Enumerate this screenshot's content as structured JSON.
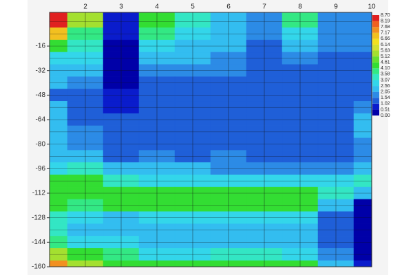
{
  "chart_data": {
    "type": "contour",
    "x": [
      1,
      2,
      3,
      4,
      5,
      6,
      7,
      8,
      9,
      10
    ],
    "y": [
      0,
      -8,
      -16,
      -24,
      -32,
      -40,
      -48,
      -56,
      -64,
      -72,
      -80,
      -88,
      -96,
      -104,
      -112,
      -120,
      -128,
      -136,
      -144,
      -152,
      -160
    ],
    "z": [
      [
        8.2,
        5.5,
        0.8,
        4.5,
        3.5,
        2.3,
        2.0,
        3.8,
        2.0,
        2.0
      ],
      [
        7.0,
        4.0,
        0.6,
        3.8,
        3.0,
        2.3,
        1.6,
        3.0,
        1.8,
        1.8
      ],
      [
        4.5,
        3.2,
        0.3,
        3.0,
        2.5,
        2.2,
        1.5,
        2.2,
        1.6,
        1.6
      ],
      [
        3.0,
        2.6,
        0.3,
        2.3,
        2.2,
        2.0,
        1.4,
        1.8,
        1.4,
        1.5
      ],
      [
        2.5,
        2.2,
        0.3,
        1.8,
        1.8,
        1.6,
        1.3,
        1.4,
        1.3,
        1.4
      ],
      [
        2.2,
        1.6,
        0.4,
        1.4,
        1.4,
        1.3,
        1.3,
        1.3,
        1.3,
        1.4
      ],
      [
        1.5,
        1.3,
        0.6,
        1.3,
        1.3,
        1.2,
        1.2,
        1.2,
        1.3,
        1.5
      ],
      [
        2.2,
        1.3,
        0.9,
        1.3,
        1.3,
        1.2,
        1.2,
        1.2,
        1.3,
        2.0
      ],
      [
        2.3,
        1.4,
        1.1,
        1.3,
        1.3,
        1.2,
        1.2,
        1.3,
        1.4,
        2.4
      ],
      [
        2.3,
        1.6,
        1.2,
        1.4,
        1.3,
        1.3,
        1.3,
        1.3,
        1.4,
        2.2
      ],
      [
        2.4,
        1.9,
        1.3,
        1.4,
        1.4,
        1.4,
        1.4,
        1.4,
        1.4,
        1.8
      ],
      [
        2.5,
        2.3,
        1.5,
        1.8,
        1.5,
        1.6,
        1.5,
        1.5,
        1.5,
        1.8
      ],
      [
        3.0,
        3.2,
        2.3,
        2.2,
        2.1,
        2.0,
        2.0,
        2.0,
        2.0,
        2.2
      ],
      [
        4.3,
        4.4,
        3.4,
        3.0,
        2.8,
        2.7,
        2.7,
        2.7,
        2.6,
        3.2
      ],
      [
        4.4,
        4.5,
        4.3,
        4.2,
        4.3,
        4.3,
        4.3,
        4.3,
        3.2,
        2.5
      ],
      [
        4.3,
        4.0,
        4.4,
        4.4,
        4.4,
        4.4,
        4.4,
        4.4,
        2.2,
        0.5
      ],
      [
        3.2,
        2.6,
        2.4,
        2.8,
        3.0,
        3.0,
        3.0,
        3.0,
        1.5,
        0.3
      ],
      [
        3.4,
        2.4,
        2.2,
        2.2,
        2.3,
        2.3,
        2.3,
        2.3,
        1.2,
        0.3
      ],
      [
        4.0,
        3.0,
        2.6,
        2.4,
        2.4,
        2.4,
        2.4,
        2.4,
        1.3,
        0.3
      ],
      [
        5.5,
        4.3,
        3.6,
        3.0,
        3.0,
        3.2,
        3.3,
        3.0,
        1.6,
        0.4
      ],
      [
        7.5,
        5.2,
        4.4,
        4.2,
        4.3,
        4.4,
        4.6,
        4.2,
        2.2,
        0.6
      ]
    ],
    "xlim": [
      1,
      10
    ],
    "xticks": [
      2,
      3,
      4,
      5,
      6,
      7,
      8,
      9,
      10
    ],
    "ylim": [
      -160,
      6
    ],
    "yticks": [
      -16,
      -32,
      -48,
      -64,
      -80,
      -96,
      -112,
      -128,
      -144,
      -160
    ],
    "colorbar": {
      "levels": [
        {
          "value": 0,
          "label": "0.00"
        },
        0.51,
        1.02,
        1.54,
        2.05,
        2.56,
        3.07,
        3.58,
        {
          "value": 4.1,
          "label": "4.10"
        },
        4.61,
        5.12,
        5.63,
        6.14,
        6.66,
        7.17,
        7.68,
        8.19,
        {
          "value": 8.7,
          "label": "8.70"
        }
      ],
      "colors": [
        "#0000a8",
        "#0a1ccc",
        "#1f5fd8",
        "#2c8be6",
        "#33bdf0",
        "#33d6ea",
        "#33e6c4",
        "#33e884",
        "#33dd33",
        "#66e030",
        "#a4e030",
        "#d2e030",
        "#f2e020",
        "#f2c020",
        "#f29020",
        "#f06020",
        "#e02020"
      ]
    }
  }
}
